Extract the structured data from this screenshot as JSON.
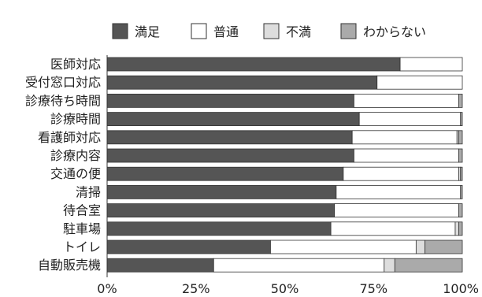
{
  "chart_data": {
    "type": "bar",
    "orientation": "horizontal",
    "stacked": true,
    "percent": true,
    "categories": [
      "医師対応",
      "受付窓口対応",
      "診療待ち時間",
      "診療時間",
      "看護師対応",
      "診療内容",
      "交通の便",
      "清掃",
      "待合室",
      "駐車場",
      "トイレ",
      "自動販売機"
    ],
    "series": [
      {
        "name": "満足",
        "color": "#555555",
        "values": [
          82.5,
          76,
          69.5,
          71,
          69,
          69.5,
          66.5,
          64.5,
          64,
          63,
          46,
          30
        ]
      },
      {
        "name": "普通",
        "color": "#ffffff",
        "values": [
          17.5,
          24,
          29.5,
          28.5,
          29.5,
          29.5,
          32.5,
          35,
          35,
          35,
          41,
          48
        ]
      },
      {
        "name": "不満",
        "color": "#dddddd",
        "values": [
          0,
          0,
          0,
          0,
          0.5,
          0,
          0.5,
          0,
          0,
          1,
          2.5,
          3
        ]
      },
      {
        "name": "わからない",
        "color": "#aaaaaa",
        "values": [
          0,
          0,
          1,
          0.5,
          1,
          1,
          0.5,
          0.5,
          1,
          1,
          10.5,
          19
        ]
      }
    ],
    "xaxis": {
      "ticks": [
        "0%",
        "25%",
        "50%",
        "75%",
        "100%"
      ],
      "range": [
        0,
        100
      ]
    },
    "legend_position": "top",
    "grid": false
  }
}
